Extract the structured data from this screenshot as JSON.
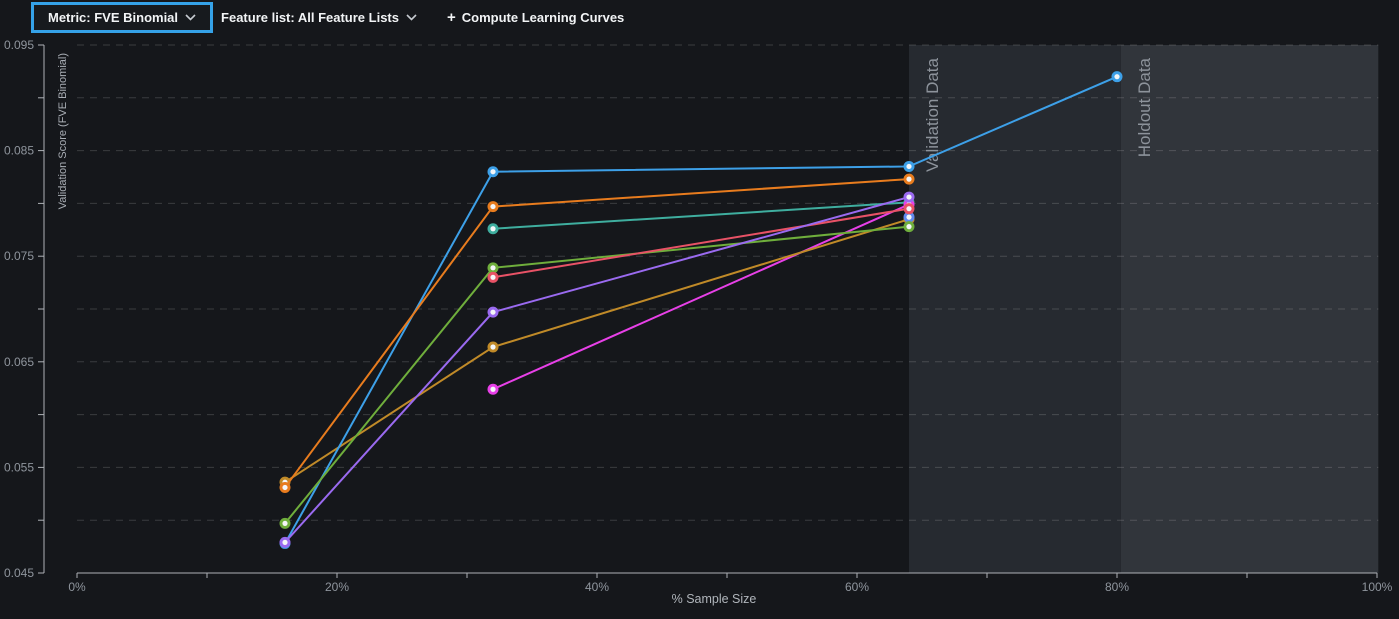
{
  "toolbar": {
    "metric_label": "Metric: FVE Binomial",
    "feature_list_label": "Feature list: All Feature Lists",
    "compute_button_label": "Compute Learning Curves",
    "plus_glyph": "+",
    "accent_color": "#35a2e8"
  },
  "chart_data": {
    "type": "line",
    "title": "",
    "xlabel": "% Sample Size",
    "ylabel": "Validation Score (FVE Binomial)",
    "xlim": [
      0,
      100
    ],
    "ylim": [
      0.045,
      0.095
    ],
    "x_tick_step": 10,
    "x_label_step": 20,
    "y_tick_step": 0.005,
    "y_label_step": 0.01,
    "grid": "horizontal-dashed",
    "legend": "none",
    "regions": [
      {
        "label": "Validation Data",
        "from": 64,
        "to": 80.3,
        "color": "#262a30"
      },
      {
        "label": "Holdout Data",
        "from": 80.3,
        "to": 100.1,
        "color": "#31353b"
      }
    ],
    "series": [
      {
        "name": "teal",
        "color": "#3fae9f",
        "points": [
          {
            "x": 32,
            "y": 0.0776
          },
          {
            "x": 64,
            "y": 0.0801
          }
        ]
      },
      {
        "name": "magenta",
        "color": "#e840e8",
        "points": [
          {
            "x": 32,
            "y": 0.0624
          },
          {
            "x": 64,
            "y": 0.0799
          }
        ]
      },
      {
        "name": "gold",
        "color": "#c08a28",
        "points": [
          {
            "x": 16,
            "y": 0.0536
          },
          {
            "x": 32,
            "y": 0.0664
          },
          {
            "x": 64,
            "y": 0.0785
          }
        ]
      },
      {
        "name": "cornflower",
        "color": "#6189ee",
        "points": [
          {
            "x": 64,
            "y": 0.0787
          }
        ]
      },
      {
        "name": "sky-blue",
        "color": "#3da0e8",
        "points": [
          {
            "x": 16,
            "y": 0.0478
          },
          {
            "x": 32,
            "y": 0.083
          },
          {
            "x": 64,
            "y": 0.0835
          },
          {
            "x": 80,
            "y": 0.092
          }
        ]
      },
      {
        "name": "green",
        "color": "#6fae3c",
        "points": [
          {
            "x": 16,
            "y": 0.0497
          },
          {
            "x": 32,
            "y": 0.0739
          },
          {
            "x": 64,
            "y": 0.0778
          }
        ]
      },
      {
        "name": "red",
        "color": "#e85266",
        "points": [
          {
            "x": 32,
            "y": 0.073
          },
          {
            "x": 64,
            "y": 0.0795
          }
        ]
      },
      {
        "name": "orange",
        "color": "#e87c1e",
        "points": [
          {
            "x": 16,
            "y": 0.0531
          },
          {
            "x": 32,
            "y": 0.0797
          },
          {
            "x": 64,
            "y": 0.0823
          }
        ]
      },
      {
        "name": "violet",
        "color": "#9a6af0",
        "points": [
          {
            "x": 16,
            "y": 0.0479
          },
          {
            "x": 32,
            "y": 0.0697
          },
          {
            "x": 64,
            "y": 0.0806
          }
        ]
      }
    ]
  }
}
